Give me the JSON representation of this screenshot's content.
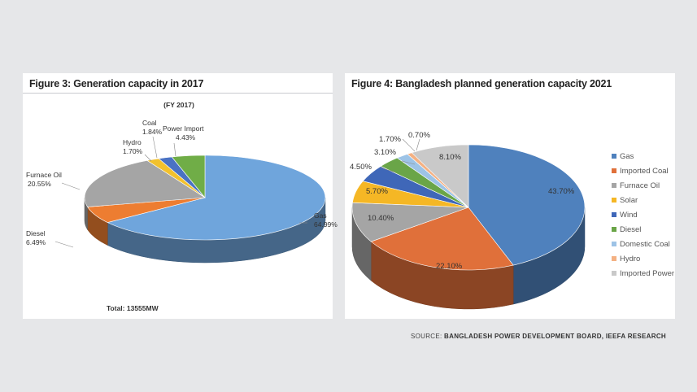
{
  "source": {
    "prefix": "SOURCE:",
    "text": "BANGLADESH POWER DEVELOPMENT BOARD, IEEFA RESEARCH"
  },
  "chart_data": [
    {
      "type": "pie",
      "title": "Figure 3: Generation capacity in 2017",
      "subtitle": "(FY 2017)",
      "footer": "Total: 13555MW",
      "start_angle_deg": 0,
      "slices": [
        {
          "name": "Gas",
          "value": 64.99,
          "label": "64.99%",
          "color": "#6fa5dc"
        },
        {
          "name": "Diesel",
          "value": 6.49,
          "label": "6.49%",
          "color": "#ed7d31"
        },
        {
          "name": "Furnace Oil",
          "value": 20.55,
          "label": "20.55%",
          "color": "#a5a5a5"
        },
        {
          "name": "Hydro",
          "value": 1.7,
          "label": "1.70%",
          "color": "#f2c12e"
        },
        {
          "name": "Coal",
          "value": 1.84,
          "label": "1.84%",
          "color": "#4a72c4"
        },
        {
          "name": "Power Import",
          "value": 4.43,
          "label": "4.43%",
          "color": "#70ad47"
        }
      ]
    },
    {
      "type": "pie",
      "title": "Figure 4: Bangladesh planned generation capacity 2021",
      "start_angle_deg": 0,
      "legend_position": "right",
      "slices": [
        {
          "name": "Gas",
          "value": 43.7,
          "label": "43.70%",
          "color": "#4f81bd"
        },
        {
          "name": "Imported Coal",
          "value": 22.1,
          "label": "22.10%",
          "color": "#e0703a"
        },
        {
          "name": "Furnace Oil",
          "value": 10.4,
          "label": "10.40%",
          "color": "#a5a5a5"
        },
        {
          "name": "Solar",
          "value": 5.7,
          "label": "5.70%",
          "color": "#f5b725"
        },
        {
          "name": "Wind",
          "value": 4.5,
          "label": "4.50%",
          "color": "#3f67b8"
        },
        {
          "name": "Diesel",
          "value": 3.1,
          "label": "3.10%",
          "color": "#6aa548"
        },
        {
          "name": "Domestic Coal",
          "value": 1.7,
          "label": "1.70%",
          "color": "#9dc3e6"
        },
        {
          "name": "Hydro",
          "value": 0.7,
          "label": "0.70%",
          "color": "#f4b183"
        },
        {
          "name": "Imported Power",
          "value": 8.1,
          "label": "8.10%",
          "color": "#c9c9c9"
        }
      ]
    }
  ]
}
